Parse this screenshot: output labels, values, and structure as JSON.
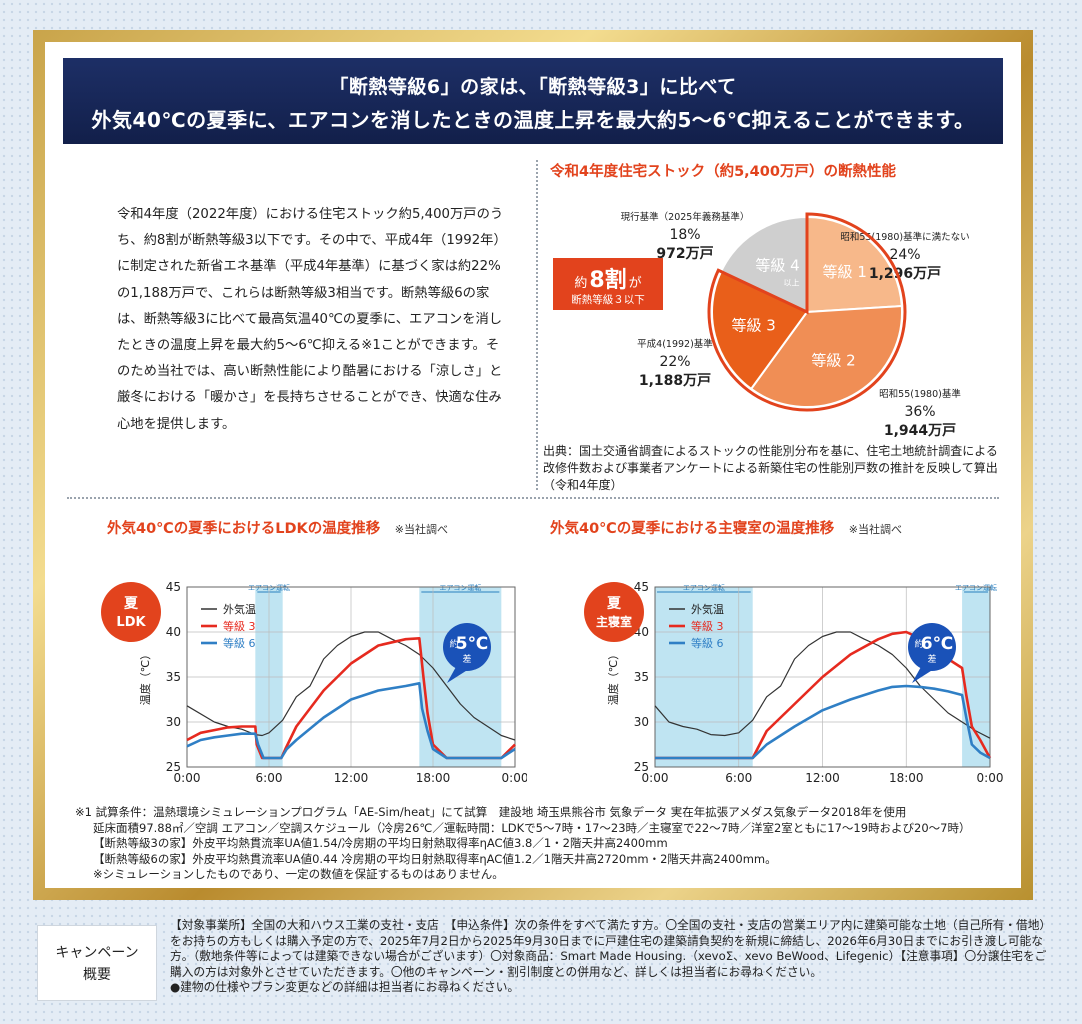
{
  "banner": {
    "line1": "「断熱等級6」の家は、「断熱等級3」に比べて",
    "line2": "外気40℃の夏季に、エアコンを消したときの温度上昇を最大約5～6℃抑えることができます。"
  },
  "intro": {
    "paragraph": "令和4年度（2022年度）における住宅ストック約5,400万戸のうち、約8割が断熱等級3以下です。その中で、平成4年（1992年）に制定された新省エネ基準（平成4年基準）に基づく家は約22%の1,188万戸で、これらは断熱等級3相当です。断熱等級6の家は、断熱等級3に比べて最高気温40℃の夏季に、エアコンを消したときの温度上昇を最大約5～6℃抑える※1ことができます。そのため当社では、高い断熱性能により酷暑における「涼しさ」と厳冬における「暖かさ」を長持ちさせることができ、快適な住み心地を提供します。"
  },
  "pie_section": {
    "title": "令和4年度住宅ストック（約5,400万戸）の断熱性能",
    "callout_big": "約",
    "callout_num": "8割",
    "callout_suffix": "が",
    "callout_sub": "断熱等級３以下",
    "source": "出典：国土交通省調査によるストックの性能別分布を基に、住宅土地統計調査による改修件数および事業者アンケートによる新築住宅の性能別戸数の推計を反映して算出（令和4年度）"
  },
  "ldk_section": {
    "title": "外気40℃の夏季におけるLDKの温度推移",
    "note": "※当社調べ",
    "badge_line1": "夏",
    "badge_line2": "LDK",
    "diff_prefix": "約",
    "diff_num": "5℃",
    "diff_suffix": "差",
    "ac_label": "エアコン運転"
  },
  "bedroom_section": {
    "title": "外気40℃の夏季における主寝室の温度推移",
    "note": "※当社調べ",
    "badge_line1": "夏",
    "badge_line2": "主寝室",
    "diff_prefix": "約",
    "diff_num": "6℃",
    "diff_suffix": "差",
    "ac_label": "エアコン運転"
  },
  "footnote": {
    "line1": "※1 試算条件：温熱環境シミュレーションプログラム「AE-Sim/heat」にて試算　建設地 埼玉県熊谷市 気象データ 実在年拡張アメダス気象データ2018年を使用",
    "line2": "延床面積97.88㎡／空調 エアコン／空調スケジュール（冷房26℃／運転時間：LDKで5～7時・17～23時／主寝室で22～7時／洋室2室ともに17～19時および20～7時）",
    "line3": "【断熱等級3の家】外皮平均熱貫流率UA値1.54/冷房期の平均日射熱取得率ηAC値3.8／1・2階天井高2400mm",
    "line4": "【断熱等級6の家】外皮平均熱貫流率UA値0.44 冷房期の平均日射熱取得率ηAC値1.2／1階天井高2720mm・2階天井高2400mm。",
    "line5": "※シミュレーションしたものであり、一定の数値を保証するものはありません。"
  },
  "campaign": {
    "label1": "キャンペーン",
    "label2": "概要",
    "text1": "【対象事業所】全国の大和ハウス工業の支社・支店　【申込条件】次の条件をすべて満たす方。〇全国の支社・支店の営業エリア内に建築可能な土地（自己所有・借地）をお持ちの方もしくは購入予定の方で、2025年7月2日から2025年9月30日までに戸建住宅の建築請負契約を新規に締結し、2026年6月30日までにお引き渡し可能な方。（敷地条件等によっては建築できない場合がございます）〇対象商品：Smart Made Housing.（xevoΣ、xevo BeWood、Lifegenic）【注意事項】〇分譲住宅をご購入の方は対象外とさせていただきます。〇他のキャンペーン・割引制度との併用など、詳しくは担当者にお尋ねください。",
    "text2": "●建物の仕様やプラン変更などの詳細は担当者にお尋ねください。"
  },
  "chart_data": [
    {
      "type": "pie",
      "title": "令和4年度住宅ストック（約5,400万戸）の断熱性能",
      "slices": [
        {
          "label": "等級 1",
          "percent": 24,
          "units": "1,296万戸",
          "desc": "昭和55(1980)基準に満たない",
          "color": "#f7b88a"
        },
        {
          "label": "等級 2",
          "percent": 36,
          "units": "1,944万戸",
          "desc": "昭和55(1980)基準",
          "color": "#f08e55"
        },
        {
          "label": "等級 3",
          "percent": 22,
          "units": "1,188万戸",
          "desc": "平成4(1992)基準",
          "color": "#e95f1a"
        },
        {
          "label": "等級 4",
          "label_sub": "以上",
          "percent": 18,
          "units": "972万戸",
          "desc": "現行基準（2025年義務基準）",
          "color": "#cfcfcf"
        }
      ]
    },
    {
      "type": "line",
      "title": "外気40℃の夏季におけるLDKの温度推移",
      "ylabel": "温度（℃）",
      "x_ticks": [
        "0:00",
        "6:00",
        "12:00",
        "18:00",
        "0:00"
      ],
      "y_ticks": [
        25,
        30,
        35,
        40,
        45
      ],
      "xlim": [
        0,
        24
      ],
      "ylim": [
        25,
        45
      ],
      "ac_periods": [
        [
          5,
          7
        ],
        [
          17,
          23
        ]
      ],
      "series": [
        {
          "name": "外気温",
          "color": "#333333",
          "x": [
            0,
            2,
            3,
            4,
            5,
            5.5,
            6,
            7,
            8,
            9,
            10,
            11,
            12,
            13,
            14,
            15,
            16,
            17,
            18,
            19,
            20,
            21,
            22,
            23,
            24
          ],
          "y": [
            31.8,
            30,
            29.5,
            29.2,
            28.6,
            28.5,
            28.8,
            30.2,
            32.8,
            34,
            37,
            38.5,
            39.5,
            40,
            40,
            39.2,
            38.5,
            37.5,
            36,
            34,
            32,
            30.5,
            29.5,
            28.5,
            28
          ]
        },
        {
          "name": "等級 3",
          "color": "#e62a1f",
          "x": [
            0,
            1,
            2,
            3,
            4,
            5,
            5.1,
            5.5,
            6.5,
            6.9,
            7.2,
            8,
            10,
            12,
            14,
            16,
            17,
            17.3,
            17.6,
            18,
            19,
            20,
            21,
            22,
            23,
            24
          ],
          "y": [
            28,
            28.8,
            29.1,
            29.4,
            29.5,
            29.5,
            27.5,
            26,
            26,
            26,
            27,
            29.5,
            33.5,
            36.5,
            38.5,
            39.2,
            39.3,
            35,
            31,
            27.5,
            26,
            26,
            26,
            26,
            26,
            27.5
          ]
        },
        {
          "name": "等級 6",
          "color": "#2f7fc5",
          "x": [
            0,
            1,
            2,
            3,
            4,
            5,
            5.2,
            5.6,
            6.5,
            6.9,
            7.3,
            8,
            10,
            12,
            14,
            16,
            17,
            17.2,
            17.6,
            18,
            19,
            20,
            21,
            22,
            23,
            24
          ],
          "y": [
            27.3,
            28,
            28.3,
            28.5,
            28.7,
            28.7,
            27.5,
            26,
            26,
            26,
            27,
            28,
            30.5,
            32.5,
            33.5,
            34,
            34.3,
            31.5,
            29,
            27,
            26,
            26,
            26,
            26,
            26,
            27
          ]
        }
      ]
    },
    {
      "type": "line",
      "title": "外気40℃の夏季における主寝室の温度推移",
      "ylabel": "温度（℃）",
      "x_ticks": [
        "0:00",
        "6:00",
        "12:00",
        "18:00",
        "0:00"
      ],
      "y_ticks": [
        25,
        30,
        35,
        40,
        45
      ],
      "xlim": [
        0,
        24
      ],
      "ylim": [
        25,
        45
      ],
      "ac_periods": [
        [
          0,
          7
        ],
        [
          22,
          24
        ]
      ],
      "series": [
        {
          "name": "外気温",
          "color": "#333333",
          "x": [
            0,
            1,
            2,
            3,
            4,
            5,
            6,
            7,
            8,
            9,
            10,
            11,
            12,
            13,
            14,
            15,
            16,
            17,
            18,
            19,
            20,
            21,
            22,
            23,
            24
          ],
          "y": [
            31.8,
            30,
            29.5,
            29.2,
            28.6,
            28.5,
            28.8,
            30.2,
            32.8,
            34,
            37,
            38.5,
            39.5,
            40,
            40,
            39.2,
            38.5,
            37.5,
            36,
            34,
            32.5,
            31,
            30,
            29,
            28.2
          ]
        },
        {
          "name": "等級 3",
          "color": "#e62a1f",
          "x": [
            0,
            7,
            8,
            10,
            12,
            14,
            16,
            17,
            18,
            19,
            20,
            21,
            22,
            22.3,
            22.7,
            23.3,
            24
          ],
          "y": [
            26,
            26,
            29,
            32,
            35,
            37.5,
            39.2,
            39.8,
            40,
            39.3,
            38.2,
            37,
            36,
            33,
            29.5,
            28,
            26
          ]
        },
        {
          "name": "等級 6",
          "color": "#2f7fc5",
          "x": [
            0,
            7,
            8,
            10,
            12,
            14,
            16,
            17,
            18,
            19,
            20,
            21,
            22,
            22.3,
            22.7,
            23.3,
            24
          ],
          "y": [
            26,
            26,
            27.5,
            29.5,
            31.3,
            32.5,
            33.5,
            33.9,
            34,
            33.9,
            33.7,
            33.4,
            33,
            30.5,
            27.5,
            26.6,
            26
          ]
        }
      ]
    }
  ]
}
